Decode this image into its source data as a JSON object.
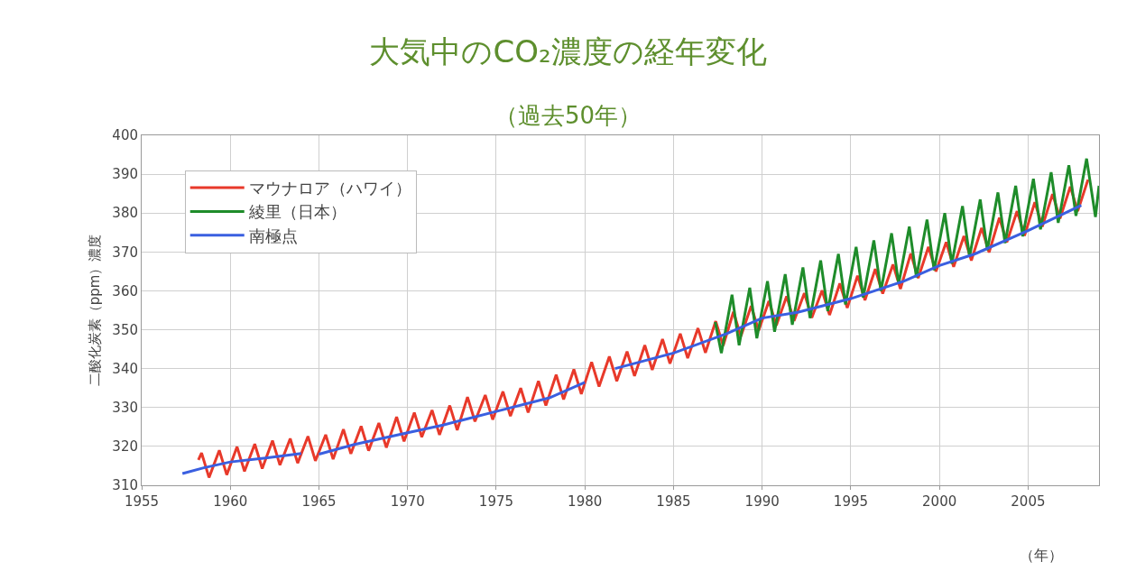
{
  "chart_data": {
    "type": "line",
    "title": "大気中のCO₂濃度の経年変化",
    "subtitle": "（過去50年）",
    "xlabel": "（年）",
    "ylabel": "二酸化炭素（ppm）濃度",
    "xlim": [
      1955,
      2009
    ],
    "xticks": [
      1955,
      1960,
      1965,
      1970,
      1975,
      1980,
      1985,
      1990,
      1995,
      2000,
      2005
    ],
    "ylim": [
      310,
      400
    ],
    "yticks": [
      310,
      320,
      330,
      340,
      350,
      360,
      370,
      380,
      390,
      400
    ],
    "grid": true,
    "legend": "top left",
    "marker": "none",
    "line_style": "solid",
    "series": [
      {
        "name": "マウナロア（ハワイ）",
        "color": "#e8392a",
        "x": [
          1958.2,
          1958.38,
          1958.8,
          1959.38,
          1959.8,
          1960.38,
          1960.8,
          1961.38,
          1961.8,
          1962.38,
          1962.8,
          1963.38,
          1963.8,
          1964.38,
          1964.8,
          1965.38,
          1965.8,
          1966.38,
          1966.8,
          1967.38,
          1967.8,
          1968.38,
          1968.8,
          1969.38,
          1969.8,
          1970.38,
          1970.8,
          1971.38,
          1971.8,
          1972.38,
          1972.8,
          1973.38,
          1973.8,
          1974.38,
          1974.8,
          1975.38,
          1975.8,
          1976.38,
          1976.8,
          1977.38,
          1977.8,
          1978.38,
          1978.8,
          1979.38,
          1979.8,
          1980.38,
          1980.8,
          1981.38,
          1981.8,
          1982.38,
          1982.8,
          1983.38,
          1983.8,
          1984.38,
          1984.8,
          1985.38,
          1985.8,
          1986.38,
          1986.8,
          1987.38,
          1987.8,
          1988.38,
          1988.8,
          1989.38,
          1989.8,
          1990.38,
          1990.8,
          1991.38,
          1991.8,
          1992.38,
          1992.8,
          1993.38,
          1993.8,
          1994.38,
          1994.8,
          1995.38,
          1995.8,
          1996.38,
          1996.8,
          1997.38,
          1997.8,
          1998.38,
          1998.8,
          1999.38,
          1999.8,
          2000.38,
          2000.8,
          2001.38,
          2001.8,
          2002.38,
          2002.8,
          2003.38,
          2003.8,
          2004.38,
          2004.8,
          2005.38,
          2005.8,
          2006.38,
          2006.8,
          2007.38,
          2007.8,
          2008.38
        ],
        "values": [
          316.5,
          318.3,
          312.0,
          319.0,
          312.7,
          319.9,
          313.6,
          320.6,
          314.3,
          321.5,
          315.2,
          322.0,
          315.7,
          322.6,
          316.3,
          323.0,
          316.7,
          324.4,
          318.1,
          325.2,
          318.9,
          326.0,
          319.7,
          327.6,
          321.3,
          328.7,
          322.4,
          329.3,
          323.0,
          330.5,
          324.2,
          332.7,
          326.4,
          333.2,
          326.9,
          334.1,
          327.8,
          335.0,
          328.7,
          336.8,
          330.5,
          338.4,
          332.1,
          339.8,
          333.5,
          341.7,
          335.4,
          343.1,
          336.8,
          344.4,
          338.1,
          346.0,
          339.7,
          347.6,
          341.3,
          349.0,
          342.7,
          350.4,
          344.1,
          352.2,
          345.9,
          354.6,
          348.3,
          356.1,
          349.8,
          357.4,
          351.1,
          358.6,
          352.3,
          359.4,
          353.1,
          360.1,
          353.8,
          361.9,
          355.6,
          363.9,
          357.6,
          365.6,
          359.3,
          366.8,
          360.5,
          369.6,
          363.3,
          371.3,
          365.0,
          372.5,
          366.2,
          374.1,
          367.8,
          376.2,
          369.9,
          378.8,
          372.5,
          380.5,
          374.2,
          382.8,
          376.5,
          384.9,
          378.6,
          386.8,
          380.5,
          388.6
        ]
      },
      {
        "name": "綾里（日本）",
        "color": "#1e8c2a",
        "x": [
          1987.35,
          1987.7,
          1988.3,
          1988.7,
          1989.3,
          1989.7,
          1990.3,
          1990.7,
          1991.3,
          1991.7,
          1992.3,
          1992.7,
          1993.3,
          1993.7,
          1994.3,
          1994.7,
          1995.3,
          1995.7,
          1996.3,
          1996.7,
          1997.3,
          1997.7,
          1998.3,
          1998.7,
          1999.3,
          1999.7,
          2000.3,
          2000.7,
          2001.3,
          2001.7,
          2002.3,
          2002.7,
          2003.3,
          2003.7,
          2004.3,
          2004.7,
          2005.3,
          2005.7,
          2006.3,
          2006.7,
          2007.3,
          2007.7,
          2008.3,
          2008.8,
          2009.0
        ],
        "values": [
          352,
          344,
          359,
          346,
          360.8,
          347.8,
          362.5,
          349.5,
          364.3,
          351.3,
          366,
          353,
          367.8,
          354.8,
          369.5,
          356.5,
          371.3,
          358.3,
          373,
          360,
          374.8,
          361.8,
          376.5,
          363.5,
          378.3,
          365.3,
          380,
          367,
          381.8,
          368.8,
          383.5,
          370.5,
          385.3,
          372.3,
          387,
          374,
          388.8,
          375.8,
          390.5,
          377.5,
          392.3,
          379.3,
          394,
          379,
          387
        ]
      },
      {
        "name": "南極点",
        "color": "#3a5fe0",
        "x": [
          1957.3,
          1958.5,
          1960,
          1962,
          1964,
          1964.5,
          1965,
          1967,
          1970,
          1972,
          1975,
          1978,
          1980,
          1981,
          1981.7,
          1985,
          1988,
          1990,
          1992,
          1995,
          1998,
          2000,
          2002,
          2005,
          2008
        ],
        "values": [
          313.0,
          314.5,
          316.0,
          317.0,
          318.2,
          null,
          318.0,
          320.5,
          323.5,
          325.5,
          329.0,
          332.5,
          336.5,
          null,
          340.0,
          344.0,
          349.0,
          353.0,
          354.5,
          358.0,
          362.5,
          366.5,
          369.5,
          375.5,
          382.0
        ]
      }
    ]
  }
}
